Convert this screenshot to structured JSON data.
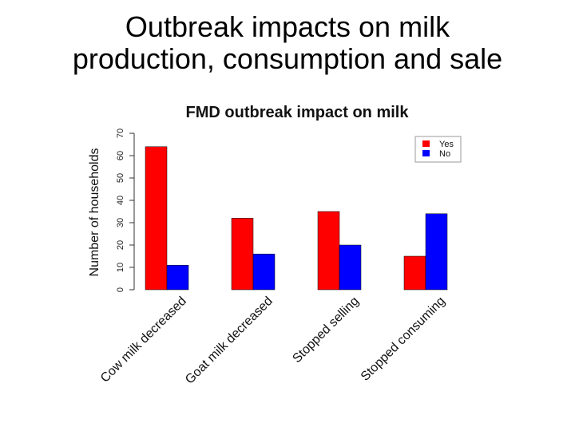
{
  "slide": {
    "title_line1": "Outbreak impacts on milk",
    "title_line2": "production, consumption and sale"
  },
  "chart_data": {
    "type": "bar",
    "title": "FMD outbreak impact on milk",
    "xlabel": "",
    "ylabel": "Number of households",
    "ylim": [
      0,
      70
    ],
    "yticks": [
      0,
      10,
      20,
      30,
      40,
      50,
      60,
      70
    ],
    "categories": [
      "Cow milk decreased",
      "Goat milk decreased",
      "Stopped selling",
      "Stopped consuming"
    ],
    "series": [
      {
        "name": "Yes",
        "color": "#ff0000",
        "values": [
          64,
          32,
          35,
          15
        ]
      },
      {
        "name": "No",
        "color": "#0000ff",
        "values": [
          11,
          16,
          20,
          34
        ]
      }
    ],
    "legend_position": "top-right",
    "grid": false
  }
}
